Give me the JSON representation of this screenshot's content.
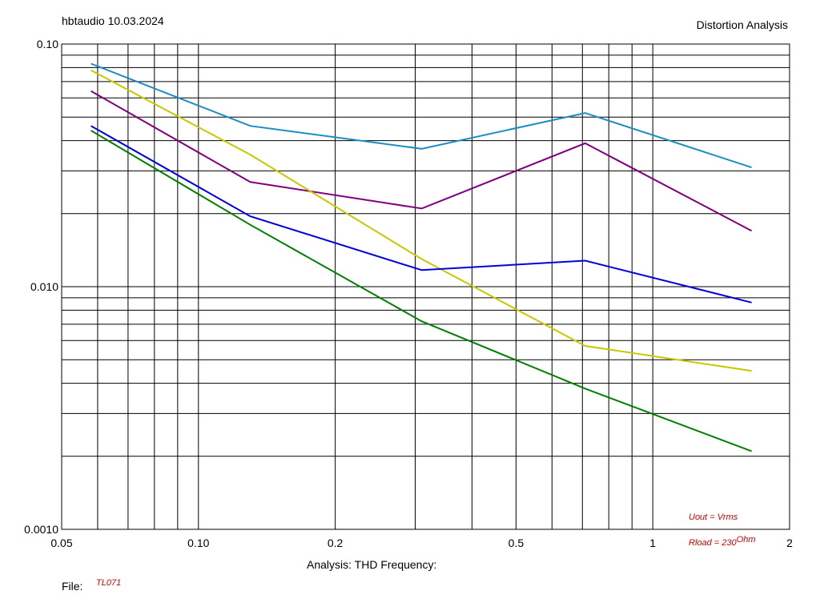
{
  "header": {
    "left": "hbtaudio  10.03.2024",
    "right": "Distortion Analysis"
  },
  "footer": {
    "analysis": "Analysis: THD   Frequency:",
    "file_label": "File:",
    "file_name": "TL071"
  },
  "annotations": {
    "uout": "Uout = Vrms",
    "rload": "Rload = 230",
    "rload_unit": "Ohm"
  },
  "chart_data": {
    "type": "line",
    "x_scale": "log",
    "y_scale": "log",
    "xlim": [
      0.05,
      2
    ],
    "ylim": [
      0.001,
      0.1
    ],
    "x_ticks": [
      {
        "value": 0.05,
        "label": "0.05"
      },
      {
        "value": 0.1,
        "label": "0.10"
      },
      {
        "value": 0.2,
        "label": "0.2"
      },
      {
        "value": 0.5,
        "label": "0.5"
      },
      {
        "value": 1,
        "label": "1"
      },
      {
        "value": 2,
        "label": "2"
      }
    ],
    "y_ticks": [
      {
        "value": 0.1,
        "label": "0.10"
      },
      {
        "value": 0.01,
        "label": "0.010"
      },
      {
        "value": 0.001,
        "label": "0.0010"
      }
    ],
    "grid": true,
    "series": [
      {
        "color": "#1a8ec4",
        "x": [
          0.058,
          0.13,
          0.31,
          0.71,
          1.65
        ],
        "y": [
          0.083,
          0.046,
          0.037,
          0.052,
          0.031
        ]
      },
      {
        "color": "#800080",
        "x": [
          0.058,
          0.13,
          0.31,
          0.71,
          1.65
        ],
        "y": [
          0.064,
          0.027,
          0.021,
          0.039,
          0.017
        ]
      },
      {
        "color": "#c8c800",
        "x": [
          0.058,
          0.13,
          0.31,
          0.71,
          1.65
        ],
        "y": [
          0.078,
          0.035,
          0.013,
          0.0057,
          0.0045
        ]
      },
      {
        "color": "#0000e0",
        "x": [
          0.058,
          0.13,
          0.31,
          0.71,
          1.65
        ],
        "y": [
          0.046,
          0.0195,
          0.0117,
          0.0128,
          0.0086
        ]
      },
      {
        "color": "#008000",
        "x": [
          0.058,
          0.13,
          0.31,
          0.71,
          1.65
        ],
        "y": [
          0.044,
          0.018,
          0.0072,
          0.0038,
          0.0021
        ]
      }
    ]
  }
}
